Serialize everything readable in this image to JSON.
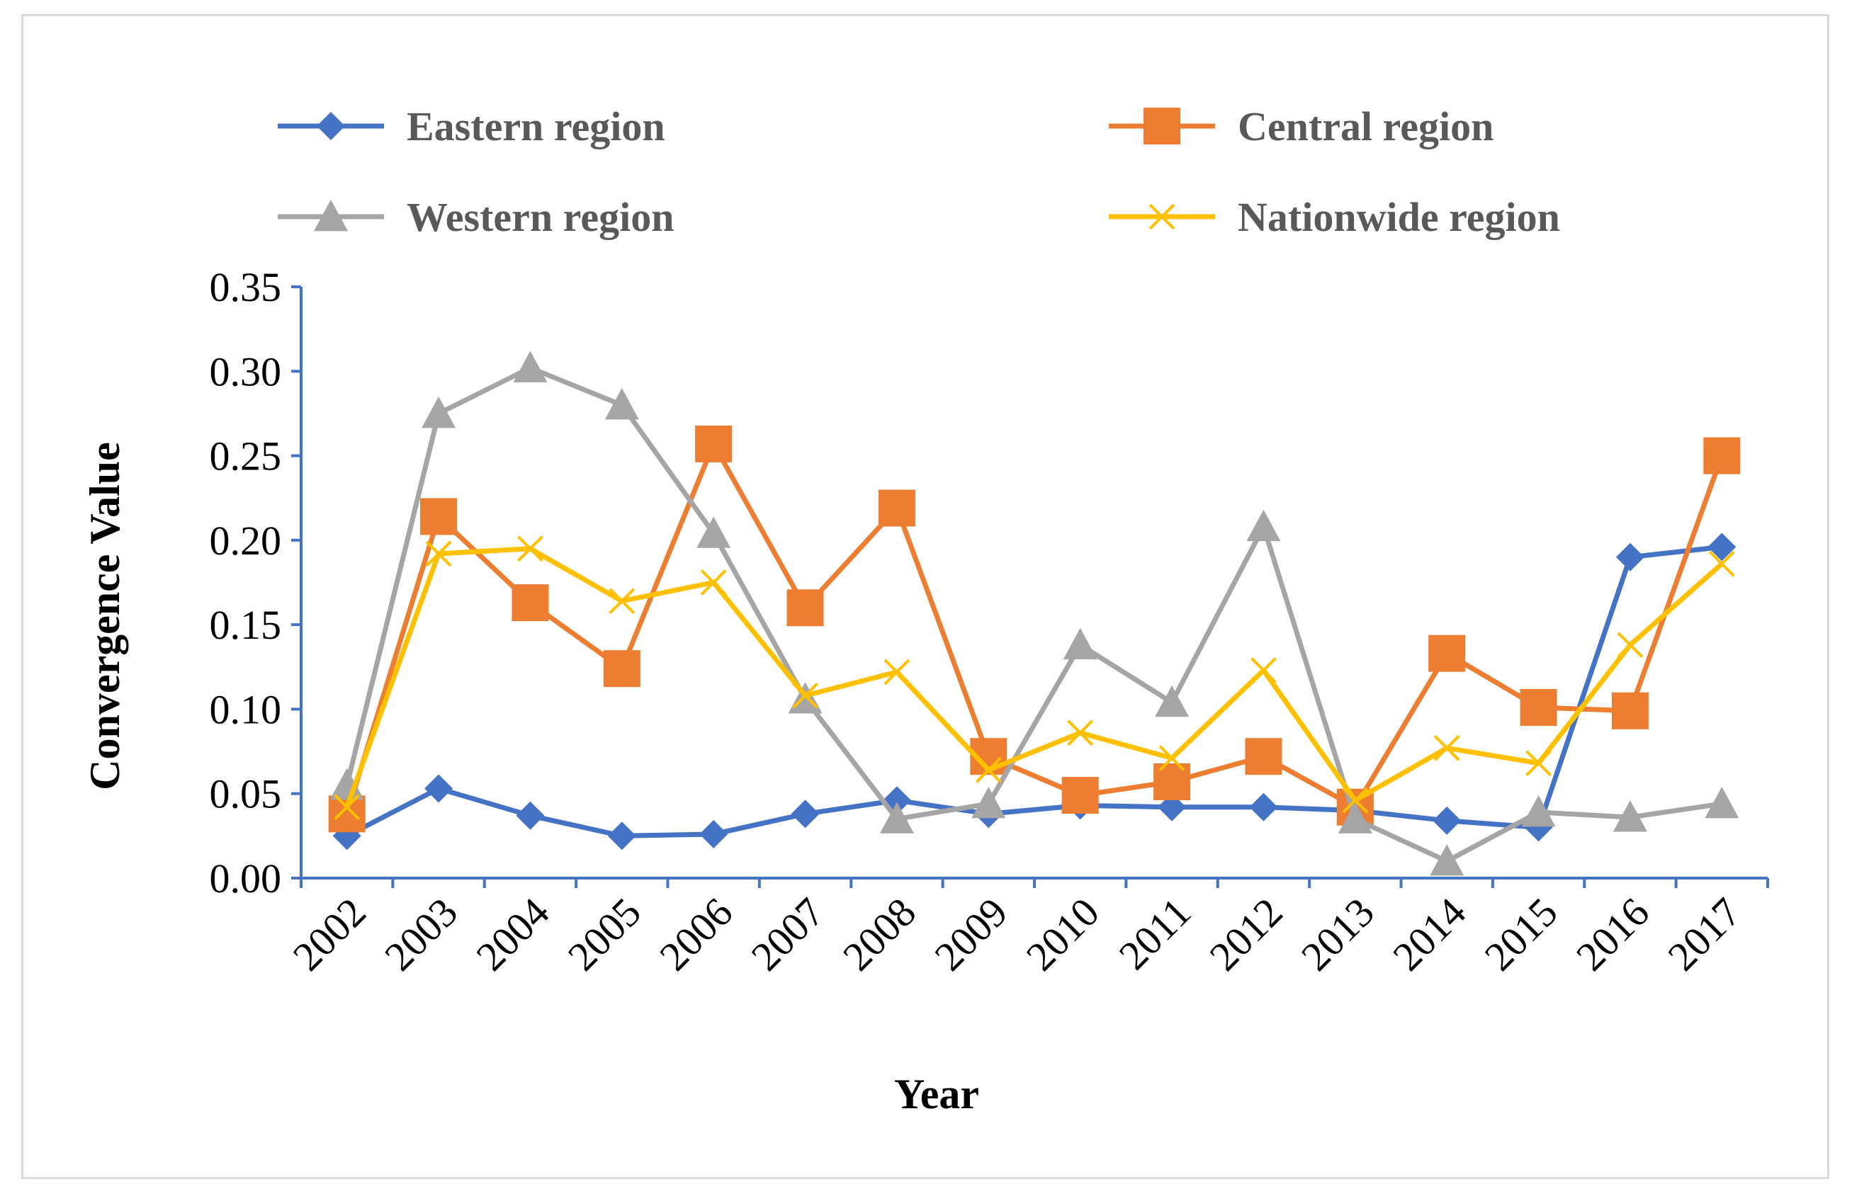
{
  "chart_data": {
    "type": "line",
    "xlabel": "Year",
    "ylabel": "Convergence Value",
    "ylim": [
      0,
      0.35
    ],
    "yticks": [
      "0.00",
      "0.05",
      "0.10",
      "0.15",
      "0.20",
      "0.25",
      "0.30",
      "0.35"
    ],
    "categories": [
      "2002",
      "2003",
      "2004",
      "2005",
      "2006",
      "2007",
      "2008",
      "2009",
      "2010",
      "2011",
      "2012",
      "2013",
      "2014",
      "2015",
      "2016",
      "2017"
    ],
    "legend_position": "top",
    "series": [
      {
        "name": "Eastern region",
        "color": "#4472C4",
        "marker": "diamond",
        "values": [
          0.025,
          0.053,
          0.037,
          0.025,
          0.026,
          0.038,
          0.046,
          0.038,
          0.043,
          0.042,
          0.042,
          0.04,
          0.034,
          0.03,
          0.19,
          0.196
        ]
      },
      {
        "name": "Central region",
        "color": "#ED7D31",
        "marker": "square",
        "values": [
          0.038,
          0.214,
          0.163,
          0.124,
          0.257,
          0.16,
          0.219,
          0.072,
          0.049,
          0.057,
          0.072,
          0.042,
          0.133,
          0.101,
          0.099,
          0.25
        ]
      },
      {
        "name": "Western region",
        "color": "#A5A5A5",
        "marker": "triangle",
        "values": [
          0.055,
          0.275,
          0.302,
          0.28,
          0.204,
          0.106,
          0.035,
          0.044,
          0.138,
          0.104,
          0.208,
          0.035,
          0.01,
          0.039,
          0.036,
          0.044
        ]
      },
      {
        "name": "Nationwide region",
        "color": "#FFC000",
        "marker": "x",
        "values": [
          0.042,
          0.192,
          0.195,
          0.164,
          0.175,
          0.108,
          0.122,
          0.064,
          0.086,
          0.071,
          0.123,
          0.046,
          0.077,
          0.068,
          0.138,
          0.186
        ]
      }
    ]
  }
}
